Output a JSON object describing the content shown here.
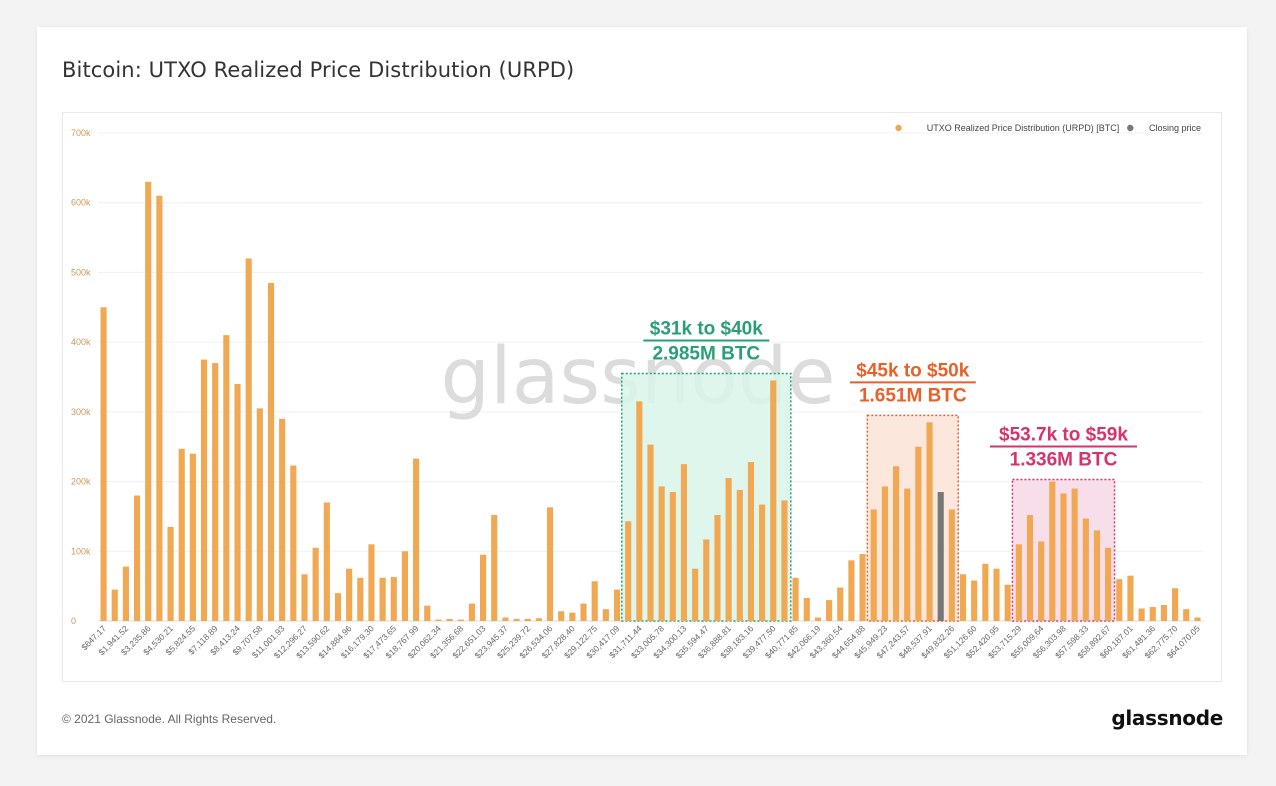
{
  "page": {
    "title": "Bitcoin: UTXO Realized Price Distribution (URPD)",
    "copyright": "© 2021 Glassnode. All Rights Reserved.",
    "logo": "glassnode",
    "watermark": "glassnode"
  },
  "colors": {
    "bar": "#f0a852",
    "closing": "#777777",
    "green": "#2a9f75",
    "orange": "#e8612a",
    "pink": "#d6336c"
  },
  "chart_data": {
    "type": "bar",
    "legend": {
      "position": "top-right",
      "entries": [
        "UTXO Realized Price Distribution (URPD) [BTC]",
        "Closing price"
      ]
    },
    "ylim": [
      0,
      700000
    ],
    "yticks": [
      "0",
      "100k",
      "200k",
      "300k",
      "400k",
      "500k",
      "600k",
      "700k"
    ],
    "grid": true,
    "values": [
      450000,
      45000,
      78000,
      180000,
      630000,
      610000,
      135000,
      247000,
      240000,
      375000,
      370000,
      410000,
      340000,
      520000,
      305000,
      485000,
      290000,
      223000,
      67000,
      105000,
      170000,
      40000,
      75000,
      62000,
      110000,
      62000,
      63000,
      100000,
      233000,
      22000,
      2000,
      3000,
      2000,
      25000,
      95000,
      152000,
      5000,
      3000,
      3000,
      4000,
      163000,
      14000,
      12000,
      25000,
      57000,
      17000,
      45000,
      143000,
      315000,
      253000,
      193000,
      185000,
      225000,
      75000,
      117000,
      152000,
      205000,
      188000,
      228000,
      167000,
      345000,
      173000,
      62000,
      33000,
      5000,
      30000,
      48000,
      87000,
      96000,
      160000,
      193000,
      222000,
      190000,
      250000,
      285000,
      185000,
      160000,
      67000,
      58000,
      82000,
      75000,
      52000,
      110000,
      152000,
      114000,
      200000,
      183000,
      190000,
      147000,
      130000,
      105000,
      60000,
      65000,
      18000,
      20000,
      23000,
      47000,
      17000,
      5000
    ],
    "closing_price_index": 75,
    "x_tick_labels": [
      "$647.17",
      "$1,941.52",
      "$3,235.86",
      "$4,530.21",
      "$5,824.55",
      "$7,118.89",
      "$8,413.24",
      "$9,707.58",
      "$11,001.93",
      "$12,296.27",
      "$13,590.62",
      "$14,884.96",
      "$16,179.30",
      "$17,473.65",
      "$18,767.99",
      "$20,062.34",
      "$21,356.68",
      "$22,651.03",
      "$23,945.37",
      "$25,239.72",
      "$26,534.06",
      "$27,828.40",
      "$29,122.75",
      "$30,417.09",
      "$31,711.44",
      "$33,005.78",
      "$34,300.13",
      "$35,594.47",
      "$36,888.81",
      "$38,183.16",
      "$39,477.50",
      "$40,771.85",
      "$42,066.19",
      "$43,360.54",
      "$44,654.88",
      "$45,949.23",
      "$47,243.57",
      "$48,537.91",
      "$49,832.26",
      "$51,126.60",
      "$52,420.95",
      "$53,715.29",
      "$55,009.64",
      "$56,303.98",
      "$57,598.33",
      "$58,892.67",
      "$60,187.01",
      "$61,481.36",
      "$62,775.70",
      "$64,070.05"
    ],
    "annotations": [
      {
        "line1": "$31k to $40k",
        "line2": "2.985M BTC",
        "color": "green",
        "from_index": 47,
        "to_index": 61,
        "y_top": 355000
      },
      {
        "line1": "$45k to $50k",
        "line2": "1.651M BTC",
        "color": "orange",
        "from_index": 69,
        "to_index": 76,
        "y_top": 295000
      },
      {
        "line1": "$53.7k to $59k",
        "line2": "1.336M BTC",
        "color": "pink",
        "from_index": 82,
        "to_index": 90,
        "y_top": 203000
      }
    ]
  }
}
